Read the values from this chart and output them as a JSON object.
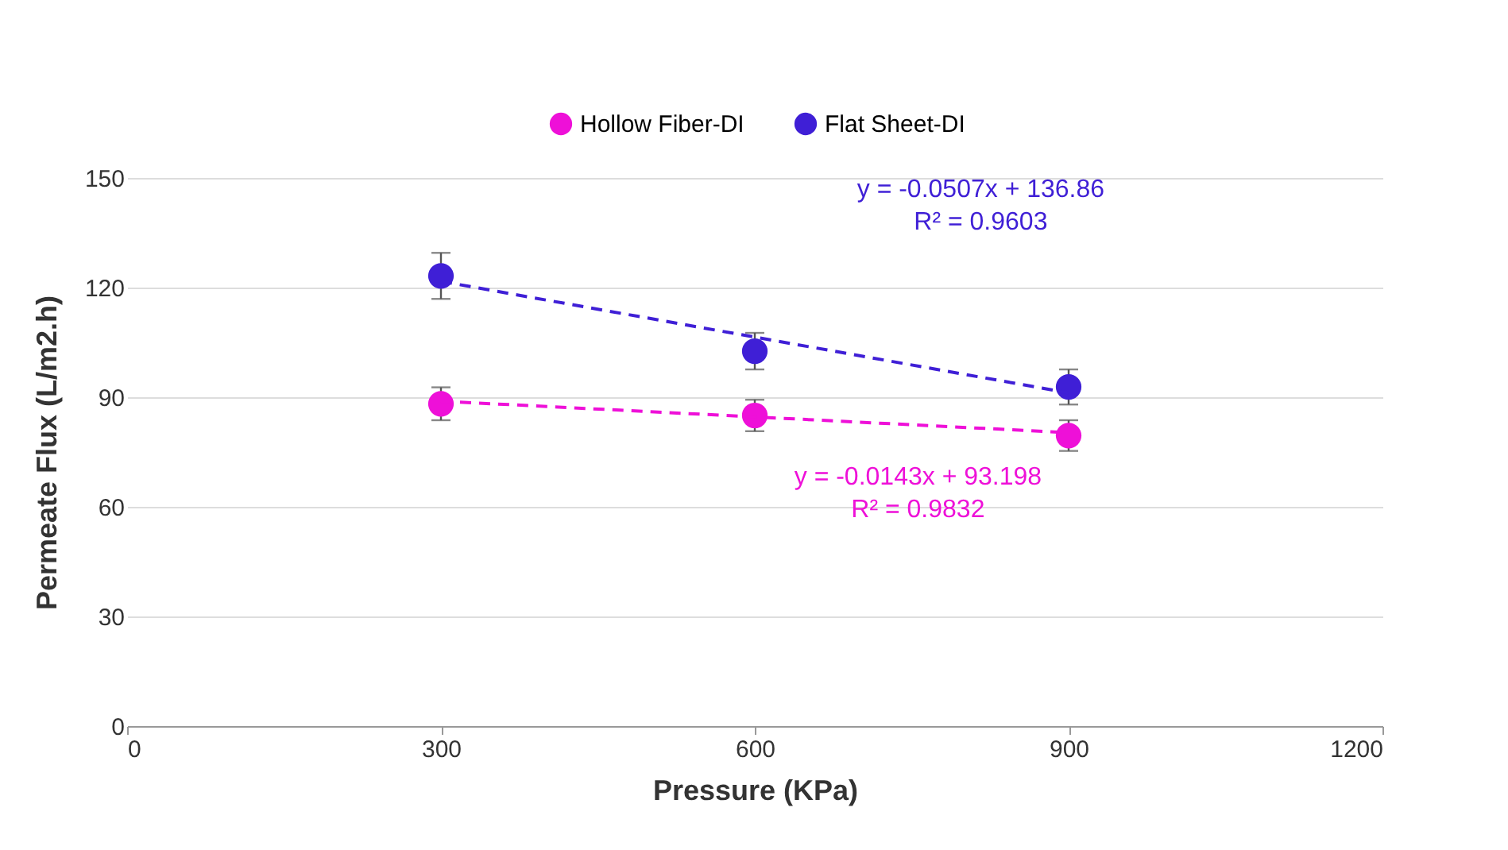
{
  "chart_data": {
    "type": "scatter",
    "xlabel": "Pressure (KPa)",
    "ylabel": "Permeate Flux (L/m2.h)",
    "xlim": [
      0,
      1200
    ],
    "xticks": [
      0,
      300,
      600,
      900,
      1200
    ],
    "ylim": [
      0,
      150
    ],
    "yticks": [
      0,
      30,
      60,
      90,
      120,
      150
    ],
    "grid": "y",
    "legend": "top",
    "marker": "circle",
    "series": [
      {
        "name": "Hollow Fiber-DI",
        "color": "#ee10d8",
        "x": [
          300,
          600,
          900
        ],
        "values": [
          88.2,
          85.0,
          79.5
        ],
        "errors": [
          4.5,
          4.3,
          4.2
        ]
      },
      {
        "name": "Flat Sheet-DI",
        "color": "#3f1fd6",
        "x": [
          300,
          600,
          900
        ],
        "values": [
          123.2,
          102.6,
          92.8
        ],
        "errors": [
          6.3,
          5.0,
          4.8
        ]
      },
      {
        "type": "line",
        "color": "#ee10d8",
        "line_style": "dashed",
        "marker": "none",
        "x": [
          300,
          900
        ],
        "values": [
          88.9,
          80.3
        ]
      },
      {
        "type": "line",
        "color": "#3f1fd6",
        "line_style": "dashed",
        "marker": "none",
        "x": [
          300,
          900
        ],
        "values": [
          121.7,
          91.2
        ]
      }
    ],
    "annotations": [
      "y = -0.0507x + 136.86",
      "R² = 0.9603",
      "y = -0.0143x + 93.198",
      "R² = 0.9832"
    ]
  }
}
